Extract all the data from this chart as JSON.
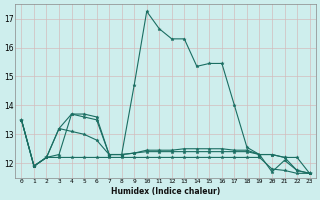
{
  "xlabel": "Humidex (Indice chaleur)",
  "background_color": "#ceeeed",
  "grid_color": "#b8d8d8",
  "line_color": "#1a6e62",
  "x_values": [
    0,
    1,
    2,
    3,
    4,
    5,
    6,
    7,
    8,
    9,
    10,
    11,
    12,
    13,
    14,
    15,
    16,
    17,
    18,
    19,
    20,
    21,
    22,
    23
  ],
  "series": [
    [
      13.5,
      11.9,
      12.2,
      13.2,
      13.7,
      13.7,
      13.6,
      12.3,
      12.3,
      14.7,
      17.25,
      16.65,
      16.3,
      16.3,
      15.35,
      15.45,
      15.45,
      14.0,
      12.55,
      12.3,
      11.7,
      12.1,
      11.75,
      11.65
    ],
    [
      13.5,
      11.9,
      12.2,
      13.2,
      13.1,
      13.0,
      12.8,
      12.3,
      12.3,
      12.35,
      12.45,
      12.45,
      12.45,
      12.5,
      12.5,
      12.5,
      12.5,
      12.45,
      12.45,
      12.3,
      12.3,
      12.2,
      11.75,
      11.65
    ],
    [
      13.5,
      11.9,
      12.2,
      12.3,
      13.7,
      13.6,
      13.5,
      12.3,
      12.3,
      12.35,
      12.4,
      12.4,
      12.4,
      12.4,
      12.4,
      12.4,
      12.4,
      12.4,
      12.4,
      12.3,
      12.3,
      12.2,
      12.2,
      11.65
    ],
    [
      13.5,
      11.9,
      12.2,
      12.2,
      12.2,
      12.2,
      12.2,
      12.2,
      12.2,
      12.2,
      12.2,
      12.2,
      12.2,
      12.2,
      12.2,
      12.2,
      12.2,
      12.2,
      12.2,
      12.2,
      11.8,
      11.75,
      11.65,
      11.65
    ]
  ],
  "ylim": [
    11.5,
    17.5
  ],
  "yticks": [
    12,
    13,
    14,
    15,
    16,
    17
  ],
  "xlim": [
    -0.5,
    23.5
  ],
  "figsize": [
    3.2,
    2.0
  ],
  "dpi": 100
}
